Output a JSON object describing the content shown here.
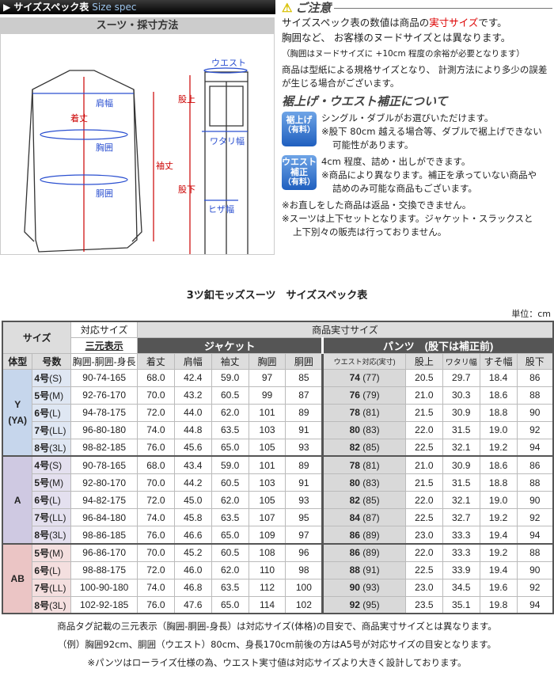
{
  "header": {
    "title": "サイズスペック表",
    "title_en": "Size spec"
  },
  "diagram": {
    "title": "スーツ・採寸方法",
    "labels": {
      "length": "着丈",
      "shoulder": "肩幅",
      "chest": "胸囲",
      "waist_j": "胴囲",
      "sleeve": "袖丈",
      "waist": "ウエスト",
      "rise": "股上",
      "thigh": "ワタリ幅",
      "knee": "ヒザ幅",
      "inseam": "股下"
    }
  },
  "notes": {
    "caution_title": "ご注意",
    "line1_a": "サイズスペック表の数値は商品の",
    "line1_red": "実寸サイズ",
    "line1_b": "です。",
    "line2": "胸囲など、 お客様のヌードサイズとは異なります。",
    "line3": "（胸囲はヌードサイズに +10cm 程度の余裕が必要となります）",
    "line4": "商品は型紙による規格サイズとなり、 計測方法により多少の誤差が生じる場合がございます。",
    "section_title": "裾上げ・ウエスト補正について",
    "badge1": {
      "l1": "裾上げ",
      "l2": "（有料）"
    },
    "badge1_text": [
      "シングル・ダブルがお選びいただけます。",
      "※股下 80cm 越える場合等、ダブルで裾上げできない",
      "可能性があります。"
    ],
    "badge2": {
      "l1": "ウエスト",
      "l2": "補正",
      "l3": "（有料）"
    },
    "badge2_text": [
      "4cm 程度、詰め・出しができます。",
      "※商品により異なります。補正を承っていない商品や",
      "詰めのみ可能な商品もございます。"
    ],
    "extra": [
      "※お直しをした商品は返品・交換できません。",
      "※スーツは上下セットとなります。ジャケット・スラックスと",
      "上下別々の販売は行っておりません。"
    ]
  },
  "table_title": "3ツ釦モッズスーツ　サイズスペック表",
  "unit": "単位：cm",
  "table": {
    "h_size": "サイズ",
    "h_corr": "対応サイズ",
    "h_actual": "商品実寸サイズ",
    "h_three": "三元表示",
    "h_jacket": "ジャケット",
    "h_pants": "パンツ　(股下は補正前)",
    "cols": [
      "体型",
      "号数",
      "胸囲-胴囲-身長",
      "着丈",
      "肩幅",
      "袖丈",
      "胸囲",
      "胴囲",
      "ウエスト対応(実寸)",
      "股上",
      "ワタリ幅",
      "すそ幅",
      "股下"
    ],
    "groups": [
      {
        "type": "Y\n(YA)",
        "color": "#c6d6ec",
        "light": "#dfe7f3",
        "rows": [
          [
            "4号",
            "(S)",
            "90-74-165",
            "68.0",
            "42.4",
            "59.0",
            "97",
            "85",
            "74",
            "(77)",
            "20.5",
            "29.7",
            "18.4",
            "86"
          ],
          [
            "5号",
            "(M)",
            "92-76-170",
            "70.0",
            "43.2",
            "60.5",
            "99",
            "87",
            "76",
            "(79)",
            "21.0",
            "30.3",
            "18.6",
            "88"
          ],
          [
            "6号",
            "(L)",
            "94-78-175",
            "72.0",
            "44.0",
            "62.0",
            "101",
            "89",
            "78",
            "(81)",
            "21.5",
            "30.9",
            "18.8",
            "90"
          ],
          [
            "7号",
            "(LL)",
            "96-80-180",
            "74.0",
            "44.8",
            "63.5",
            "103",
            "91",
            "80",
            "(83)",
            "22.0",
            "31.5",
            "19.0",
            "92"
          ],
          [
            "8号",
            "(3L)",
            "98-82-185",
            "76.0",
            "45.6",
            "65.0",
            "105",
            "93",
            "82",
            "(85)",
            "22.5",
            "32.1",
            "19.2",
            "94"
          ]
        ]
      },
      {
        "type": "A",
        "color": "#cfc9e2",
        "light": "#e4e0ef",
        "rows": [
          [
            "4号",
            "(S)",
            "90-78-165",
            "68.0",
            "43.4",
            "59.0",
            "101",
            "89",
            "78",
            "(81)",
            "21.0",
            "30.9",
            "18.6",
            "86"
          ],
          [
            "5号",
            "(M)",
            "92-80-170",
            "70.0",
            "44.2",
            "60.5",
            "103",
            "91",
            "80",
            "(83)",
            "21.5",
            "31.5",
            "18.8",
            "88"
          ],
          [
            "6号",
            "(L)",
            "94-82-175",
            "72.0",
            "45.0",
            "62.0",
            "105",
            "93",
            "82",
            "(85)",
            "22.0",
            "32.1",
            "19.0",
            "90"
          ],
          [
            "7号",
            "(LL)",
            "96-84-180",
            "74.0",
            "45.8",
            "63.5",
            "107",
            "95",
            "84",
            "(87)",
            "22.5",
            "32.7",
            "19.2",
            "92"
          ],
          [
            "8号",
            "(3L)",
            "98-86-185",
            "76.0",
            "46.6",
            "65.0",
            "109",
            "97",
            "86",
            "(89)",
            "23.0",
            "33.3",
            "19.4",
            "94"
          ]
        ]
      },
      {
        "type": "AB",
        "color": "#ebc5c5",
        "light": "#f4dfdf",
        "rows": [
          [
            "5号",
            "(M)",
            "96-86-170",
            "70.0",
            "45.2",
            "60.5",
            "108",
            "96",
            "86",
            "(89)",
            "22.0",
            "33.3",
            "19.2",
            "88"
          ],
          [
            "6号",
            "(L)",
            "98-88-175",
            "72.0",
            "46.0",
            "62.0",
            "110",
            "98",
            "88",
            "(91)",
            "22.5",
            "33.9",
            "19.4",
            "90"
          ],
          [
            "7号",
            "(LL)",
            "100-90-180",
            "74.0",
            "46.8",
            "63.5",
            "112",
            "100",
            "90",
            "(93)",
            "23.0",
            "34.5",
            "19.6",
            "92"
          ],
          [
            "8号",
            "(3L)",
            "102-92-185",
            "76.0",
            "47.6",
            "65.0",
            "114",
            "102",
            "92",
            "(95)",
            "23.5",
            "35.1",
            "19.8",
            "94"
          ]
        ]
      }
    ]
  },
  "footer": [
    "商品タグ記載の三元表示（胸囲-胴囲-身長）は対応サイズ(体格)の目安で、商品実寸サイズとは異なります。",
    "（例）胸囲92cm、胴囲（ウエスト）80cm、身長170cm前後の方はA5号が対応サイズの目安となります。",
    "※パンツはローライズ仕様の為、ウエスト実寸値は対応サイズより大きく設計しております。"
  ]
}
